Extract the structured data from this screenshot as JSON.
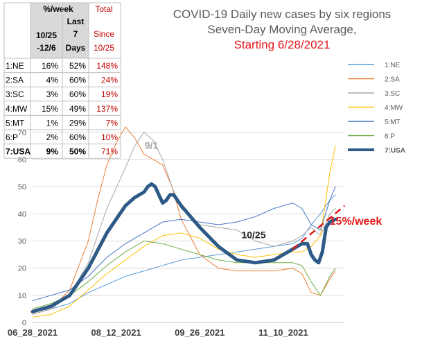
{
  "chart_data": {
    "type": "line",
    "title_lines": [
      "COVID-19 Daily new cases by six regions",
      "Seven-Day Moving Average,",
      "Starting 6/28/2021"
    ],
    "xlabel": "",
    "ylabel": "",
    "x_tick_labels": [
      "06_28_2021",
      "08_12_2021",
      "09_26_2021",
      "11_10_2021"
    ],
    "x_tick_days": [
      0,
      45,
      90,
      135
    ],
    "x_range": [
      0,
      166
    ],
    "ylim": [
      0,
      72
    ],
    "y_ticks": [
      0,
      10,
      20,
      30,
      40,
      50,
      60,
      70
    ],
    "grid": true,
    "legend_position": "right",
    "series": [
      {
        "name": "1:NE",
        "color": "#5b9bd5",
        "width": 1,
        "x": [
          0,
          10,
          20,
          30,
          40,
          50,
          60,
          70,
          80,
          90,
          100,
          110,
          120,
          130,
          140,
          145,
          150,
          155,
          160,
          163
        ],
        "y": [
          4,
          5,
          7,
          11,
          14,
          17,
          19,
          21,
          23,
          24,
          25,
          26,
          27,
          28,
          29,
          31,
          36,
          40,
          45,
          47
        ]
      },
      {
        "name": "2:SA",
        "color": "#ed7d31",
        "width": 1,
        "x": [
          0,
          10,
          20,
          30,
          35,
          40,
          45,
          50,
          55,
          60,
          65,
          70,
          75,
          80,
          90,
          100,
          110,
          120,
          130,
          140,
          145,
          150,
          155,
          160,
          163
        ],
        "y": [
          3,
          5,
          12,
          30,
          45,
          58,
          66,
          72,
          68,
          62,
          60,
          58,
          50,
          38,
          25,
          20,
          19,
          19,
          19,
          20,
          18,
          11,
          10,
          16,
          19
        ]
      },
      {
        "name": "3:SC",
        "color": "#a5a5a5",
        "width": 1,
        "x": [
          0,
          10,
          20,
          30,
          40,
          50,
          55,
          60,
          65,
          70,
          75,
          80,
          90,
          100,
          110,
          120,
          130,
          140,
          145,
          150,
          155,
          160,
          163
        ],
        "y": [
          3,
          5,
          10,
          22,
          42,
          57,
          65,
          70,
          67,
          60,
          50,
          42,
          36,
          35,
          34,
          30,
          28,
          30,
          32,
          35,
          32,
          40,
          42
        ]
      },
      {
        "name": "4:MW",
        "color": "#ffc000",
        "width": 1,
        "x": [
          0,
          10,
          20,
          30,
          40,
          50,
          60,
          70,
          80,
          90,
          100,
          110,
          120,
          130,
          140,
          145,
          150,
          155,
          160,
          163
        ],
        "y": [
          2,
          3,
          6,
          12,
          18,
          23,
          28,
          32,
          33,
          31,
          27,
          25,
          24,
          25,
          26,
          26,
          28,
          32,
          55,
          65
        ]
      },
      {
        "name": "5:MT",
        "color": "#4472c4",
        "width": 1,
        "x": [
          0,
          10,
          20,
          30,
          40,
          50,
          60,
          70,
          80,
          90,
          100,
          110,
          120,
          130,
          140,
          145,
          150,
          155,
          160,
          163
        ],
        "y": [
          8,
          10,
          12,
          17,
          24,
          29,
          33,
          37,
          38,
          37,
          36,
          37,
          39,
          42,
          44,
          42,
          36,
          34,
          45,
          50
        ]
      },
      {
        "name": "6:P",
        "color": "#70ad47",
        "width": 1,
        "x": [
          0,
          10,
          20,
          30,
          40,
          50,
          60,
          70,
          80,
          90,
          100,
          110,
          120,
          130,
          140,
          145,
          150,
          155,
          160,
          163
        ],
        "y": [
          5,
          7,
          10,
          15,
          21,
          26,
          30,
          29,
          27,
          25,
          23,
          22,
          22,
          22,
          22,
          21,
          15,
          10,
          17,
          20
        ]
      },
      {
        "name": "7:USA",
        "color": "#2e5a87",
        "width": 5,
        "x": [
          0,
          10,
          20,
          30,
          40,
          45,
          50,
          55,
          60,
          62,
          64,
          66,
          68,
          70,
          72,
          74,
          76,
          78,
          80,
          85,
          90,
          100,
          110,
          120,
          130,
          140,
          145,
          148,
          150,
          152,
          154,
          156,
          158,
          160,
          163
        ],
        "y": [
          4,
          6,
          10,
          20,
          33,
          38,
          43,
          46,
          48,
          50,
          51,
          50,
          47,
          44,
          45,
          47,
          47,
          45,
          43,
          39,
          35,
          28,
          23,
          22,
          23,
          27,
          29,
          29,
          25,
          23,
          22,
          26,
          35,
          37,
          38
        ]
      }
    ],
    "trend_line": {
      "color": "#e31a1c",
      "x": [
        140,
        168
      ],
      "y": [
        27,
        43
      ]
    },
    "annotations": [
      {
        "text": "9/1",
        "x": 64,
        "y": 64,
        "color": "#a5a5a5"
      },
      {
        "text": "10/25",
        "x": 119,
        "y": 31,
        "color": "#222222"
      },
      {
        "text": "15%/week",
        "x": 174,
        "y": 36,
        "color": "#e31a1c"
      }
    ],
    "table": {
      "headers": [
        [
          "",
          "%/week",
          "",
          "Total"
        ],
        [
          "",
          "",
          "Last",
          ""
        ],
        [
          "",
          "",
          "7",
          ""
        ],
        [
          "",
          "10/25",
          "",
          "Since"
        ],
        [
          "",
          "-12/6",
          "Days",
          "10/25"
        ]
      ],
      "rows": [
        [
          "1:NE",
          "16%",
          "52%",
          "148%"
        ],
        [
          "2:SA",
          "4%",
          "60%",
          "24%"
        ],
        [
          "3:SC",
          "3%",
          "60%",
          "19%"
        ],
        [
          "4:MW",
          "15%",
          "49%",
          "137%"
        ],
        [
          "5:MT",
          "1%",
          "29%",
          "7%"
        ],
        [
          "6:P",
          "2%",
          "60%",
          "10%"
        ],
        [
          "7:USA",
          "9%",
          "50%",
          "71%"
        ]
      ]
    }
  }
}
